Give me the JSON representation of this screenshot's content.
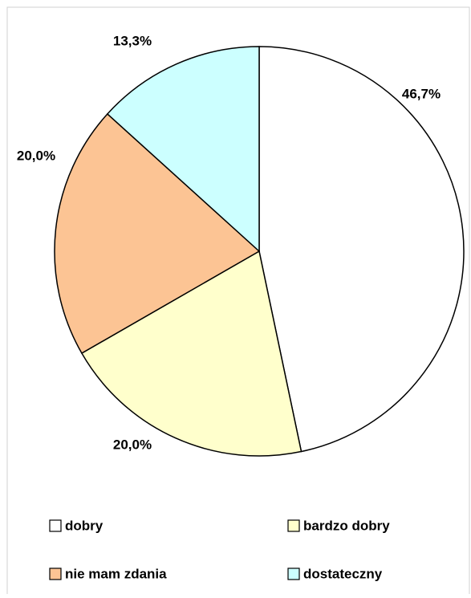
{
  "chart_data": {
    "type": "pie",
    "categories": [
      "dobry",
      "bardzo dobry",
      "nie mam zdania",
      "dostateczny"
    ],
    "values": [
      46.7,
      20.0,
      20.0,
      13.3
    ],
    "value_labels": [
      "46,7%",
      "20,0%",
      "20,0%",
      "13,3%"
    ],
    "colors": [
      "#ffffff",
      "#ffffcc",
      "#fcc494",
      "#ccffff"
    ],
    "legend": "bottom"
  }
}
